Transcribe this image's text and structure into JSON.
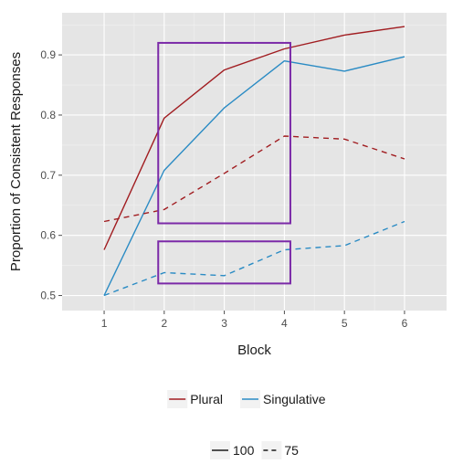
{
  "chart_data": {
    "type": "line",
    "xlabel": "Block",
    "ylabel": "Proportion of Consistent Responses",
    "x": [
      1,
      2,
      3,
      4,
      5,
      6
    ],
    "x_ticks": [
      "1",
      "2",
      "3",
      "4",
      "5",
      "6"
    ],
    "xlim": [
      0.3,
      6.7
    ],
    "y_ticks": [
      "0.5",
      "0.6",
      "0.7",
      "0.8",
      "0.9"
    ],
    "ylim": [
      0.475,
      0.97
    ],
    "grid": true,
    "background": "#e5e5e5",
    "series": [
      {
        "group": "Plural",
        "condition": "100",
        "color": "#a11d21",
        "dash": "solid",
        "values": [
          0.576,
          0.795,
          0.875,
          0.91,
          0.933,
          0.947
        ]
      },
      {
        "group": "Singulative",
        "condition": "100",
        "color": "#2a8bc4",
        "dash": "solid",
        "values": [
          0.5,
          0.708,
          0.812,
          0.89,
          0.873,
          0.897
        ]
      },
      {
        "group": "Plural",
        "condition": "75",
        "color": "#a11d21",
        "dash": "dashed",
        "values": [
          0.623,
          0.643,
          0.703,
          0.765,
          0.76,
          0.727
        ]
      },
      {
        "group": "Singulative",
        "condition": "75",
        "color": "#2a8bc4",
        "dash": "dashed",
        "values": [
          0.5,
          0.538,
          0.533,
          0.576,
          0.583,
          0.623
        ]
      }
    ],
    "highlight_boxes": [
      {
        "x_range": [
          1.9,
          4.1
        ],
        "y_range": [
          0.62,
          0.92
        ],
        "color": "#7b2aa8"
      },
      {
        "x_range": [
          1.9,
          4.1
        ],
        "y_range": [
          0.52,
          0.59
        ],
        "color": "#7b2aa8"
      }
    ],
    "legends": [
      {
        "entries": [
          {
            "label": "Plural",
            "color": "#a11d21",
            "dash": "solid"
          },
          {
            "label": "Singulative",
            "color": "#2a8bc4",
            "dash": "solid"
          }
        ]
      },
      {
        "entries": [
          {
            "label": "100",
            "color": "#1a1a1a",
            "dash": "solid"
          },
          {
            "label": "75",
            "color": "#1a1a1a",
            "dash": "dashed"
          }
        ]
      }
    ],
    "legend_position": "bottom"
  }
}
